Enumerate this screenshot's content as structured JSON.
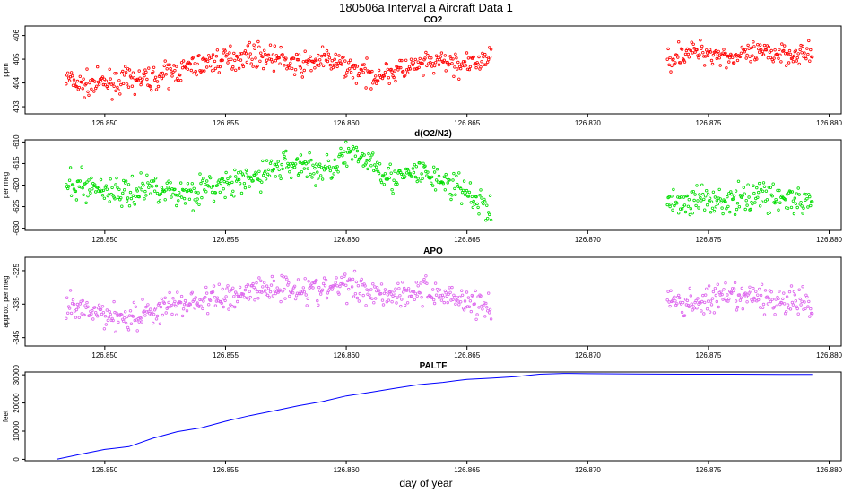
{
  "title": "180506a   Interval a Aircraft Data 1",
  "xlabel": "day of year",
  "chart_data": [
    {
      "type": "scatter",
      "title": "CO2",
      "ylabel": "ppm",
      "color": "#ff0000",
      "xlim": [
        126.8467,
        126.8805
      ],
      "ylim": [
        402.7,
        406.4
      ],
      "xticks": [
        126.85,
        126.855,
        126.86,
        126.865,
        126.87,
        126.875,
        126.88
      ],
      "xtick_labels": [
        "126.850",
        "126.855",
        "126.860",
        "126.865",
        "126.870",
        "126.875",
        "126.880"
      ],
      "yticks": [
        403,
        404,
        405,
        406
      ],
      "ytick_labels": [
        "403",
        "404",
        "405",
        "406"
      ],
      "segments": [
        {
          "x": [
            126.8484,
            126.849,
            126.85,
            126.851,
            126.852,
            126.853,
            126.854,
            126.855,
            126.856,
            126.857,
            126.858,
            126.859,
            126.86,
            126.861,
            126.862,
            126.863,
            126.864,
            126.865,
            126.866
          ],
          "y": [
            404.2,
            403.9,
            404.0,
            404.1,
            404.2,
            404.5,
            404.8,
            405.0,
            405.2,
            405.1,
            404.7,
            405.0,
            404.7,
            404.3,
            404.5,
            404.7,
            404.9,
            404.7,
            405.1
          ]
        },
        {
          "x": [
            126.8733,
            126.874,
            126.875,
            126.876,
            126.877,
            126.878,
            126.8793
          ],
          "y": [
            405.0,
            405.3,
            405.3,
            405.1,
            405.2,
            405.3,
            405.2
          ]
        }
      ],
      "scatter_sd": 0.35
    },
    {
      "type": "scatter",
      "title": "d(O2/N2)",
      "ylabel": "per meg",
      "color": "#00dd00",
      "xlim": [
        126.8467,
        126.8805
      ],
      "ylim": [
        -630.5,
        -609.5
      ],
      "xticks": [
        126.85,
        126.855,
        126.86,
        126.865,
        126.87,
        126.875,
        126.88
      ],
      "xtick_labels": [
        "126.850",
        "126.855",
        "126.860",
        "126.865",
        "126.870",
        "126.875",
        "126.880"
      ],
      "yticks": [
        -630,
        -625,
        -620,
        -615,
        -610
      ],
      "ytick_labels": [
        "-630",
        "-625",
        "-620",
        "-615",
        "-610"
      ],
      "segments": [
        {
          "x": [
            126.8484,
            126.849,
            126.85,
            126.851,
            126.852,
            126.853,
            126.854,
            126.855,
            126.856,
            126.857,
            126.858,
            126.859,
            126.86,
            126.861,
            126.862,
            126.863,
            126.864,
            126.865,
            126.866
          ],
          "y": [
            -621,
            -620,
            -621,
            -622,
            -620,
            -622,
            -621,
            -620,
            -619,
            -616,
            -615,
            -617,
            -613,
            -614,
            -619,
            -617,
            -619,
            -622,
            -626
          ]
        },
        {
          "x": [
            126.8733,
            126.874,
            126.875,
            126.876,
            126.877,
            126.878,
            126.8793
          ],
          "y": [
            -624,
            -624,
            -623,
            -624,
            -622,
            -623,
            -625
          ]
        }
      ],
      "scatter_sd": 2.4
    },
    {
      "type": "scatter",
      "title": "APO",
      "ylabel": "approx. per meg",
      "color": "#dd66ee",
      "xlim": [
        126.8467,
        126.8805
      ],
      "ylim": [
        -347.5,
        -321
      ],
      "xticks": [
        126.85,
        126.855,
        126.86,
        126.865,
        126.87,
        126.875,
        126.88
      ],
      "xtick_labels": [
        "126.850",
        "126.855",
        "126.860",
        "126.865",
        "126.870",
        "126.875",
        "126.880"
      ],
      "yticks": [
        -345,
        -335,
        -325
      ],
      "ytick_labels": [
        "-345",
        "-335",
        "-325"
      ],
      "segments": [
        {
          "x": [
            126.8484,
            126.849,
            126.85,
            126.851,
            126.852,
            126.853,
            126.854,
            126.855,
            126.856,
            126.857,
            126.858,
            126.859,
            126.86,
            126.861,
            126.862,
            126.863,
            126.864,
            126.865,
            126.866
          ],
          "y": [
            -336,
            -337,
            -338,
            -339,
            -337,
            -335,
            -334,
            -333,
            -331,
            -330,
            -330,
            -331,
            -329,
            -331,
            -332,
            -331,
            -332,
            -334,
            -336
          ]
        },
        {
          "x": [
            126.8733,
            126.874,
            126.875,
            126.876,
            126.877,
            126.878,
            126.8793
          ],
          "y": [
            -334,
            -335,
            -334,
            -333,
            -333,
            -334,
            -335
          ]
        }
      ],
      "scatter_sd": 3.0
    },
    {
      "type": "line",
      "title": "PALTF",
      "ylabel": "feet",
      "color": "#0000ff",
      "xlim": [
        126.8467,
        126.8805
      ],
      "ylim": [
        -500,
        31000
      ],
      "xticks": [
        126.85,
        126.855,
        126.86,
        126.865,
        126.87,
        126.875,
        126.88
      ],
      "xtick_labels": [
        "126.850",
        "126.855",
        "126.860",
        "126.865",
        "126.870",
        "126.875",
        "126.880"
      ],
      "yticks": [
        0,
        10000,
        20000,
        30000
      ],
      "ytick_labels": [
        "0",
        "10000",
        "20000",
        "30000"
      ],
      "x": [
        126.848,
        126.849,
        126.85,
        126.851,
        126.852,
        126.853,
        126.854,
        126.855,
        126.856,
        126.857,
        126.858,
        126.859,
        126.86,
        126.861,
        126.862,
        126.863,
        126.864,
        126.865,
        126.866,
        126.867,
        126.868,
        126.869,
        126.87,
        126.872,
        126.874,
        126.876,
        126.878,
        126.8793
      ],
      "y": [
        0,
        1800,
        3500,
        4500,
        7500,
        9800,
        11200,
        13500,
        15500,
        17200,
        19000,
        20500,
        22500,
        23800,
        25200,
        26500,
        27300,
        28400,
        28800,
        29300,
        30200,
        30500,
        30400,
        30300,
        30200,
        30200,
        30100,
        30100
      ]
    }
  ]
}
